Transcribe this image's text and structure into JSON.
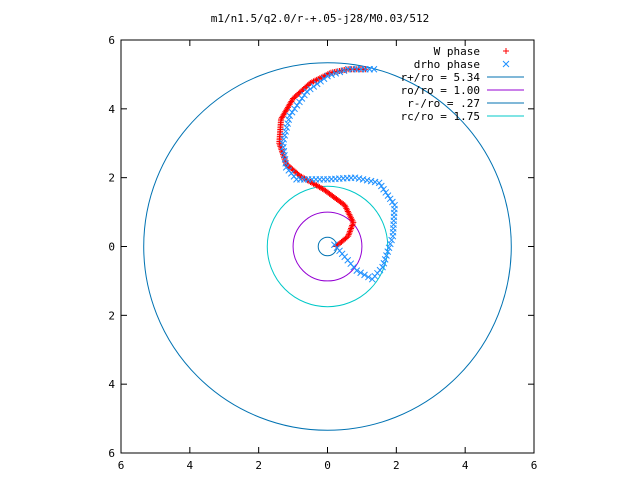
{
  "chart_data": {
    "type": "scatter",
    "title": "m1/n1.5/q2.0/r-+.05-j28/M0.03/512",
    "xlabel": "",
    "ylabel": "",
    "xlim": [
      -6,
      6
    ],
    "ylim": [
      -6,
      6
    ],
    "x_tick_labels": [
      "6",
      "4",
      "2",
      "0",
      "2",
      "4",
      "6"
    ],
    "y_tick_labels": [
      "6",
      "4",
      "2",
      "0",
      "2",
      "4",
      "6"
    ],
    "tick_values": [
      -6,
      -4,
      -2,
      0,
      2,
      4,
      6
    ],
    "grid": false,
    "legend_position": "top-right",
    "series": [
      {
        "name": "W phase",
        "kind": "points",
        "marker": "+",
        "color": "#ff0000",
        "path": [
          [
            0.25,
            0.0
          ],
          [
            0.6,
            0.3
          ],
          [
            0.75,
            0.7
          ],
          [
            0.5,
            1.2
          ],
          [
            -0.1,
            1.65
          ],
          [
            -0.8,
            2.05
          ],
          [
            -1.2,
            2.4
          ],
          [
            -1.4,
            3.0
          ],
          [
            -1.35,
            3.7
          ],
          [
            -1.0,
            4.3
          ],
          [
            -0.5,
            4.75
          ],
          [
            0.1,
            5.05
          ],
          [
            0.6,
            5.15
          ],
          [
            1.1,
            5.15
          ]
        ]
      },
      {
        "name": "drho phase",
        "kind": "points",
        "marker": "x",
        "color": "#1e90ff",
        "path": [
          [
            0.2,
            0.05
          ],
          [
            0.5,
            -0.3
          ],
          [
            0.85,
            -0.7
          ],
          [
            1.3,
            -0.95
          ],
          [
            1.6,
            -0.6
          ],
          [
            1.9,
            0.3
          ],
          [
            1.95,
            1.2
          ],
          [
            1.5,
            1.85
          ],
          [
            0.8,
            2.0
          ],
          [
            0.0,
            1.95
          ],
          [
            -0.9,
            1.95
          ],
          [
            -1.2,
            2.3
          ],
          [
            -1.3,
            3.0
          ],
          [
            -1.1,
            3.8
          ],
          [
            -0.6,
            4.5
          ],
          [
            0.0,
            4.95
          ],
          [
            0.6,
            5.15
          ],
          [
            1.35,
            5.15
          ]
        ]
      },
      {
        "name": "r+/ro = 5.34",
        "kind": "circle",
        "radius": 5.34,
        "color": "#0072b2"
      },
      {
        "name": "ro/ro = 1.00",
        "kind": "circle",
        "radius": 1.0,
        "color": "#9400d3"
      },
      {
        "name": "r-/ro = .27",
        "kind": "circle",
        "radius": 0.27,
        "color": "#0072b2"
      },
      {
        "name": "rc/ro = 1.75",
        "kind": "circle",
        "radius": 1.75,
        "color": "#00c8c8"
      }
    ]
  }
}
